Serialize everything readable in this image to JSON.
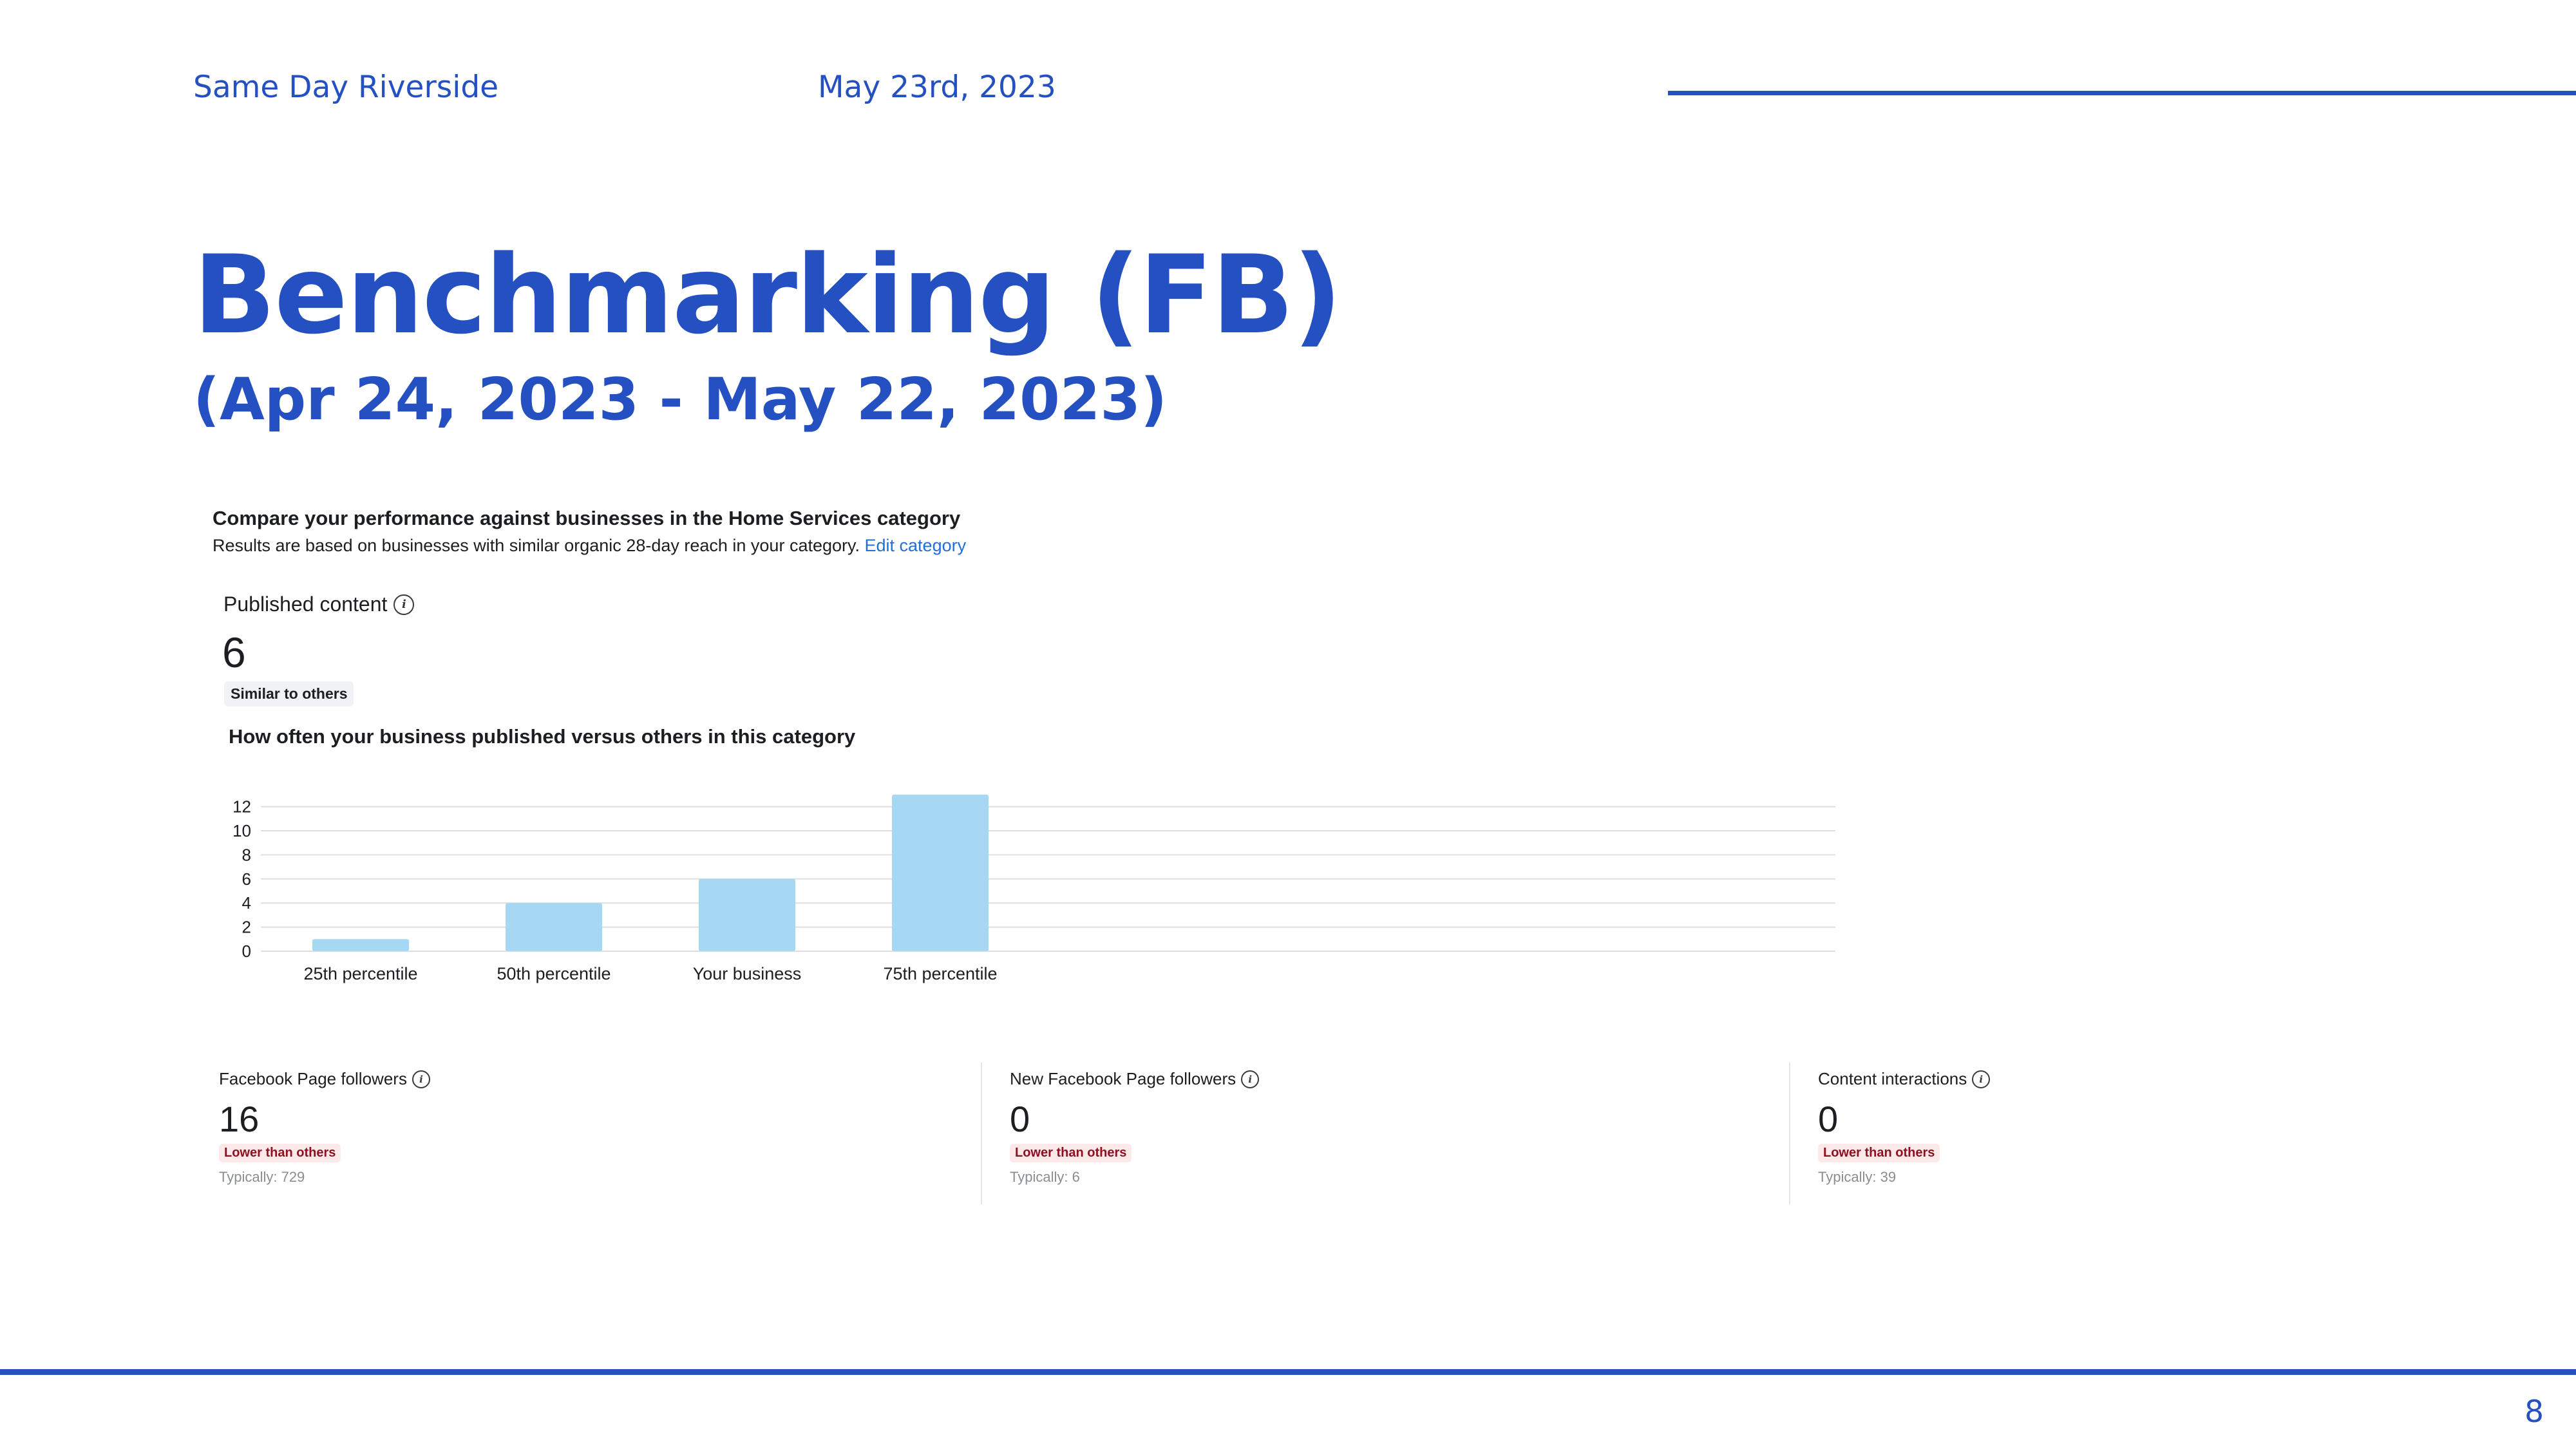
{
  "header": {
    "brand": "Same Day Riverside",
    "date": "May 23rd, 2023"
  },
  "slide": {
    "title": "Benchmarking (FB)",
    "date_range": "(Apr 24, 2023 - May 22, 2023)",
    "page_number": "8"
  },
  "benchmark": {
    "heading": "Compare your performance against businesses in the Home Services category",
    "subtext": "Results are based on businesses with similar organic 28-day reach in your category.",
    "edit_link": "Edit category",
    "published_content": {
      "label": "Published content",
      "value": "6",
      "badge": "Similar to others"
    },
    "chart_heading": "How often your business published versus others in this category"
  },
  "chart_data": {
    "type": "bar",
    "categories": [
      "25th percentile",
      "50th percentile",
      "Your business",
      "75th percentile"
    ],
    "values": [
      1,
      4,
      6,
      13
    ],
    "yticks": [
      0,
      2,
      4,
      6,
      8,
      10,
      12
    ],
    "ylim": [
      0,
      13
    ],
    "grid": true,
    "bar_color": "#a6d8f4"
  },
  "metrics": [
    {
      "label": "Facebook Page followers",
      "value": "16",
      "badge": "Lower than others",
      "typical": "Typically: 729"
    },
    {
      "label": "New Facebook Page followers",
      "value": "0",
      "badge": "Lower than others",
      "typical": "Typically: 6"
    },
    {
      "label": "Content interactions",
      "value": "0",
      "badge": "Lower than others",
      "typical": "Typically: 39"
    }
  ],
  "colors": {
    "accent": "#2450c2",
    "link": "#216fdb",
    "badge_negative_bg": "#fde8ea",
    "badge_negative_text": "#8f0f1e"
  },
  "icons": {
    "info": "info-icon"
  }
}
